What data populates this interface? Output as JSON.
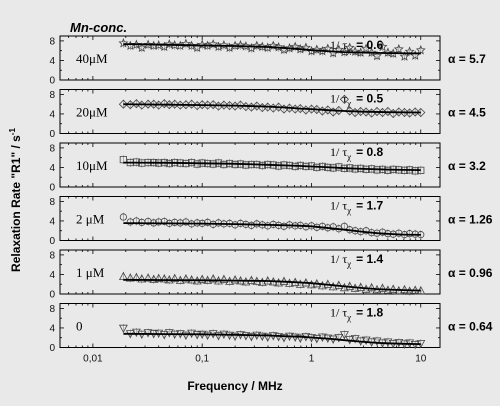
{
  "chart_data": {
    "type": "scatter",
    "corner_label": "Mn-conc.",
    "xlabel": "Frequency / MHz",
    "ylabel": "Relaxation Rate \"R1\" / s",
    "ylabel_superscript": "-1",
    "x_scale": "log",
    "xlim": [
      0.005,
      15
    ],
    "x_ticks": [
      0.01,
      0.1,
      1,
      10
    ],
    "x_tick_labels": [
      "0,01",
      "0,1",
      "1",
      "10"
    ],
    "ylim": [
      0,
      9
    ],
    "y_ticks": [
      0,
      4,
      8
    ],
    "y_tick_labels": [
      "0",
      "4",
      "8"
    ],
    "tau_symbol": "1/ τ",
    "tau_subscript": "χ",
    "alpha_symbol": "α =",
    "panels": [
      {
        "concentration": "40μM",
        "marker": "star",
        "tau_value": "= 0.6",
        "alpha_value": "5.7",
        "x": [
          0.019,
          0.022,
          0.025,
          0.028,
          0.032,
          0.036,
          0.04,
          0.045,
          0.05,
          0.056,
          0.063,
          0.071,
          0.08,
          0.09,
          0.1,
          0.112,
          0.126,
          0.141,
          0.158,
          0.178,
          0.2,
          0.224,
          0.251,
          0.282,
          0.316,
          0.355,
          0.398,
          0.447,
          0.5,
          0.56,
          0.63,
          0.71,
          0.79,
          0.89,
          1.0,
          1.12,
          1.26,
          1.41,
          1.58,
          1.78,
          2.0,
          2.24,
          2.51,
          2.82,
          3.16,
          3.55,
          3.98,
          4.47,
          5.0,
          5.6,
          6.3,
          7.1,
          7.9,
          8.9,
          10.0
        ],
        "y": [
          7.5,
          7.0,
          7.2,
          6.6,
          7.2,
          7.0,
          7.1,
          6.8,
          7.3,
          7.1,
          7.0,
          7.4,
          7.0,
          6.6,
          7.2,
          7.0,
          7.3,
          6.8,
          7.1,
          6.6,
          7.0,
          7.1,
          6.9,
          6.5,
          7.0,
          6.8,
          6.6,
          7.0,
          6.7,
          6.2,
          6.5,
          6.8,
          6.3,
          6.6,
          5.9,
          6.2,
          5.9,
          6.4,
          5.5,
          6.2,
          5.7,
          6.6,
          5.8,
          5.6,
          6.4,
          5.6,
          4.9,
          6.8,
          5.6,
          5.4,
          6.3,
          4.8,
          5.8,
          5.0,
          6.1
        ],
        "fit_x": [
          0.019,
          0.05,
          0.1,
          0.2,
          0.4,
          0.6,
          0.8,
          1.0,
          1.5,
          2,
          3,
          5,
          10
        ],
        "fit_y": [
          7.35,
          7.2,
          7.05,
          6.95,
          6.75,
          6.5,
          6.3,
          6.1,
          5.85,
          5.7,
          5.6,
          5.5,
          5.45
        ]
      },
      {
        "concentration": "20μM",
        "marker": "diamond",
        "tau_value": "= 0.5",
        "alpha_value": "4.5",
        "x": [
          0.019,
          0.022,
          0.025,
          0.028,
          0.032,
          0.036,
          0.04,
          0.045,
          0.05,
          0.056,
          0.063,
          0.071,
          0.08,
          0.09,
          0.1,
          0.112,
          0.126,
          0.141,
          0.158,
          0.178,
          0.2,
          0.224,
          0.251,
          0.282,
          0.316,
          0.355,
          0.398,
          0.447,
          0.5,
          0.56,
          0.63,
          0.71,
          0.79,
          0.89,
          1.0,
          1.12,
          1.26,
          1.41,
          1.58,
          1.78,
          2.0,
          2.24,
          2.51,
          2.82,
          3.16,
          3.55,
          3.98,
          4.47,
          5.0,
          5.6,
          6.3,
          7.1,
          7.9,
          8.9,
          10.0
        ],
        "y": [
          6.0,
          5.9,
          6.1,
          5.8,
          6.0,
          6.0,
          5.8,
          6.1,
          5.9,
          6.0,
          5.8,
          5.9,
          6.0,
          5.7,
          5.9,
          5.8,
          5.9,
          5.6,
          5.8,
          5.7,
          5.6,
          5.8,
          5.5,
          5.4,
          5.6,
          5.3,
          5.4,
          5.2,
          5.4,
          5.0,
          5.2,
          5.0,
          5.1,
          4.8,
          5.0,
          4.9,
          4.6,
          4.8,
          4.4,
          4.7,
          7.0,
          4.6,
          4.3,
          4.5,
          4.4,
          4.2,
          4.5,
          4.3,
          4.5,
          4.1,
          4.4,
          4.3,
          4.2,
          4.4,
          4.3
        ],
        "fit_x": [
          0.019,
          0.05,
          0.1,
          0.2,
          0.4,
          0.6,
          0.8,
          1.0,
          1.5,
          2,
          3,
          5,
          10
        ],
        "fit_y": [
          6.0,
          5.9,
          5.8,
          5.7,
          5.5,
          5.3,
          5.1,
          5.0,
          4.75,
          4.6,
          4.45,
          4.35,
          4.3
        ]
      },
      {
        "concentration": "10μM",
        "marker": "square",
        "tau_value": "= 0.8",
        "alpha_value": "3.2",
        "x": [
          0.019,
          0.022,
          0.025,
          0.028,
          0.032,
          0.036,
          0.04,
          0.045,
          0.05,
          0.056,
          0.063,
          0.071,
          0.08,
          0.09,
          0.1,
          0.112,
          0.126,
          0.141,
          0.158,
          0.178,
          0.2,
          0.224,
          0.251,
          0.282,
          0.316,
          0.355,
          0.398,
          0.447,
          0.5,
          0.56,
          0.63,
          0.71,
          0.79,
          0.89,
          1.0,
          1.12,
          1.26,
          1.41,
          1.58,
          1.78,
          2.0,
          2.24,
          2.51,
          2.82,
          3.16,
          3.55,
          3.98,
          4.47,
          5.0,
          5.6,
          6.3,
          7.1,
          7.9,
          8.9,
          10.0
        ],
        "y": [
          5.6,
          5.0,
          5.1,
          4.9,
          5.0,
          5.0,
          4.9,
          5.0,
          4.8,
          5.0,
          4.9,
          4.8,
          5.0,
          4.7,
          4.9,
          4.8,
          4.7,
          4.9,
          4.6,
          4.8,
          4.6,
          4.7,
          4.5,
          4.6,
          4.6,
          4.4,
          4.6,
          4.5,
          4.3,
          4.5,
          4.4,
          4.2,
          4.4,
          4.2,
          4.3,
          4.0,
          4.2,
          4.0,
          3.9,
          4.1,
          3.8,
          3.9,
          3.7,
          3.8,
          3.6,
          3.7,
          3.5,
          3.6,
          3.4,
          3.6,
          3.5,
          3.4,
          3.5,
          3.3,
          3.4
        ],
        "fit_x": [
          0.019,
          0.05,
          0.1,
          0.2,
          0.4,
          0.6,
          0.8,
          1.0,
          1.5,
          2,
          3,
          5,
          10
        ],
        "fit_y": [
          5.0,
          4.95,
          4.85,
          4.75,
          4.55,
          4.4,
          4.3,
          4.2,
          4.0,
          3.85,
          3.7,
          3.55,
          3.45
        ]
      },
      {
        "concentration": "2 μM",
        "marker": "circle",
        "tau_value": "= 1.7",
        "alpha_value": "1.26",
        "x": [
          0.019,
          0.022,
          0.025,
          0.028,
          0.032,
          0.036,
          0.04,
          0.045,
          0.05,
          0.056,
          0.063,
          0.071,
          0.08,
          0.09,
          0.1,
          0.112,
          0.126,
          0.141,
          0.158,
          0.178,
          0.2,
          0.224,
          0.251,
          0.282,
          0.316,
          0.355,
          0.398,
          0.447,
          0.5,
          0.56,
          0.63,
          0.71,
          0.79,
          0.89,
          1.0,
          1.12,
          1.26,
          1.41,
          1.58,
          1.78,
          2.0,
          2.24,
          2.51,
          2.82,
          3.16,
          3.55,
          3.98,
          4.47,
          5.0,
          5.6,
          6.3,
          7.1,
          7.9,
          8.9,
          10.0
        ],
        "y": [
          4.8,
          3.8,
          4.0,
          3.7,
          3.9,
          3.6,
          3.8,
          3.9,
          3.5,
          3.7,
          3.6,
          3.8,
          3.4,
          3.6,
          3.5,
          3.7,
          3.3,
          3.6,
          3.4,
          3.5,
          3.2,
          3.5,
          3.3,
          3.1,
          3.4,
          3.2,
          3.0,
          3.3,
          3.1,
          2.9,
          3.2,
          3.0,
          3.1,
          2.8,
          3.0,
          2.7,
          2.9,
          2.6,
          2.8,
          2.4,
          2.9,
          2.2,
          2.0,
          1.8,
          2.0,
          1.6,
          1.5,
          1.7,
          1.4,
          1.3,
          1.5,
          1.2,
          1.4,
          1.3,
          1.2
        ],
        "fit_x": [
          0.019,
          0.05,
          0.1,
          0.2,
          0.4,
          0.6,
          0.8,
          1.0,
          1.5,
          2,
          3,
          4,
          5,
          7,
          10
        ],
        "fit_y": [
          3.55,
          3.5,
          3.45,
          3.35,
          3.2,
          3.1,
          3.0,
          2.9,
          2.5,
          2.2,
          1.75,
          1.5,
          1.35,
          1.2,
          1.15
        ]
      },
      {
        "concentration": "1 μM",
        "marker": "triangle-up",
        "tau_value": "= 1.4",
        "alpha_value": "0.96",
        "x": [
          0.019,
          0.022,
          0.025,
          0.028,
          0.032,
          0.036,
          0.04,
          0.045,
          0.05,
          0.056,
          0.063,
          0.071,
          0.08,
          0.09,
          0.1,
          0.112,
          0.126,
          0.141,
          0.158,
          0.178,
          0.2,
          0.224,
          0.251,
          0.282,
          0.316,
          0.355,
          0.398,
          0.447,
          0.5,
          0.56,
          0.63,
          0.71,
          0.79,
          0.89,
          1.0,
          1.12,
          1.26,
          1.41,
          1.58,
          1.78,
          2.0,
          2.24,
          2.51,
          2.82,
          3.16,
          3.55,
          3.98,
          4.47,
          5.0,
          5.6,
          6.3,
          7.1,
          7.9,
          8.9,
          10.0
        ],
        "y": [
          3.6,
          3.3,
          3.4,
          3.1,
          3.3,
          3.0,
          3.2,
          3.1,
          2.9,
          3.2,
          2.8,
          3.1,
          2.9,
          2.7,
          3.0,
          2.8,
          3.1,
          2.7,
          3.0,
          2.6,
          2.9,
          2.7,
          2.5,
          2.8,
          2.6,
          2.4,
          2.7,
          2.5,
          2.3,
          2.6,
          2.2,
          2.4,
          2.0,
          2.3,
          1.9,
          2.1,
          1.7,
          2.0,
          1.5,
          1.8,
          1.3,
          1.6,
          1.2,
          1.4,
          1.0,
          1.3,
          0.9,
          1.2,
          0.8,
          1.0,
          0.7,
          0.9,
          0.6,
          0.8,
          0.7
        ],
        "fit_x": [
          0.019,
          0.05,
          0.1,
          0.2,
          0.4,
          0.6,
          0.8,
          1.0,
          1.5,
          2,
          3,
          4,
          5,
          7,
          10
        ],
        "fit_y": [
          2.9,
          2.85,
          2.8,
          2.75,
          2.65,
          2.5,
          2.35,
          2.2,
          1.85,
          1.55,
          1.2,
          1.0,
          0.9,
          0.8,
          0.7
        ]
      },
      {
        "concentration": "0",
        "marker": "triangle-down",
        "tau_value": "= 1.8",
        "alpha_value": "0.64",
        "x": [
          0.019,
          0.022,
          0.025,
          0.028,
          0.032,
          0.036,
          0.04,
          0.045,
          0.05,
          0.056,
          0.063,
          0.071,
          0.08,
          0.09,
          0.1,
          0.112,
          0.126,
          0.141,
          0.158,
          0.178,
          0.2,
          0.224,
          0.251,
          0.282,
          0.316,
          0.355,
          0.398,
          0.447,
          0.5,
          0.56,
          0.63,
          0.71,
          0.79,
          0.89,
          1.0,
          1.12,
          1.26,
          1.41,
          1.58,
          1.78,
          2.0,
          2.24,
          2.51,
          2.82,
          3.16,
          3.55,
          3.98,
          4.47,
          5.0,
          5.6,
          6.3,
          7.1,
          7.9,
          8.9,
          10.0
        ],
        "y": [
          3.9,
          2.8,
          3.1,
          2.7,
          3.0,
          2.8,
          2.9,
          2.6,
          3.0,
          2.7,
          2.8,
          2.5,
          2.9,
          2.6,
          2.7,
          2.5,
          2.8,
          2.4,
          2.7,
          2.5,
          2.3,
          2.6,
          2.4,
          2.2,
          2.5,
          2.3,
          2.1,
          2.4,
          2.2,
          2.0,
          2.3,
          2.1,
          1.9,
          2.2,
          2.0,
          1.8,
          2.1,
          1.9,
          1.7,
          2.0,
          2.6,
          1.6,
          1.8,
          1.3,
          1.5,
          1.1,
          1.3,
          0.9,
          1.1,
          0.8,
          1.0,
          0.7,
          0.9,
          0.6,
          0.8
        ],
        "fit_x": [
          0.019,
          0.05,
          0.1,
          0.2,
          0.4,
          0.6,
          0.8,
          1.0,
          1.5,
          2,
          3,
          4,
          5,
          7,
          10
        ],
        "fit_y": [
          2.8,
          2.75,
          2.7,
          2.6,
          2.45,
          2.3,
          2.2,
          2.05,
          1.75,
          1.5,
          1.15,
          0.95,
          0.85,
          0.75,
          0.7
        ]
      }
    ]
  }
}
